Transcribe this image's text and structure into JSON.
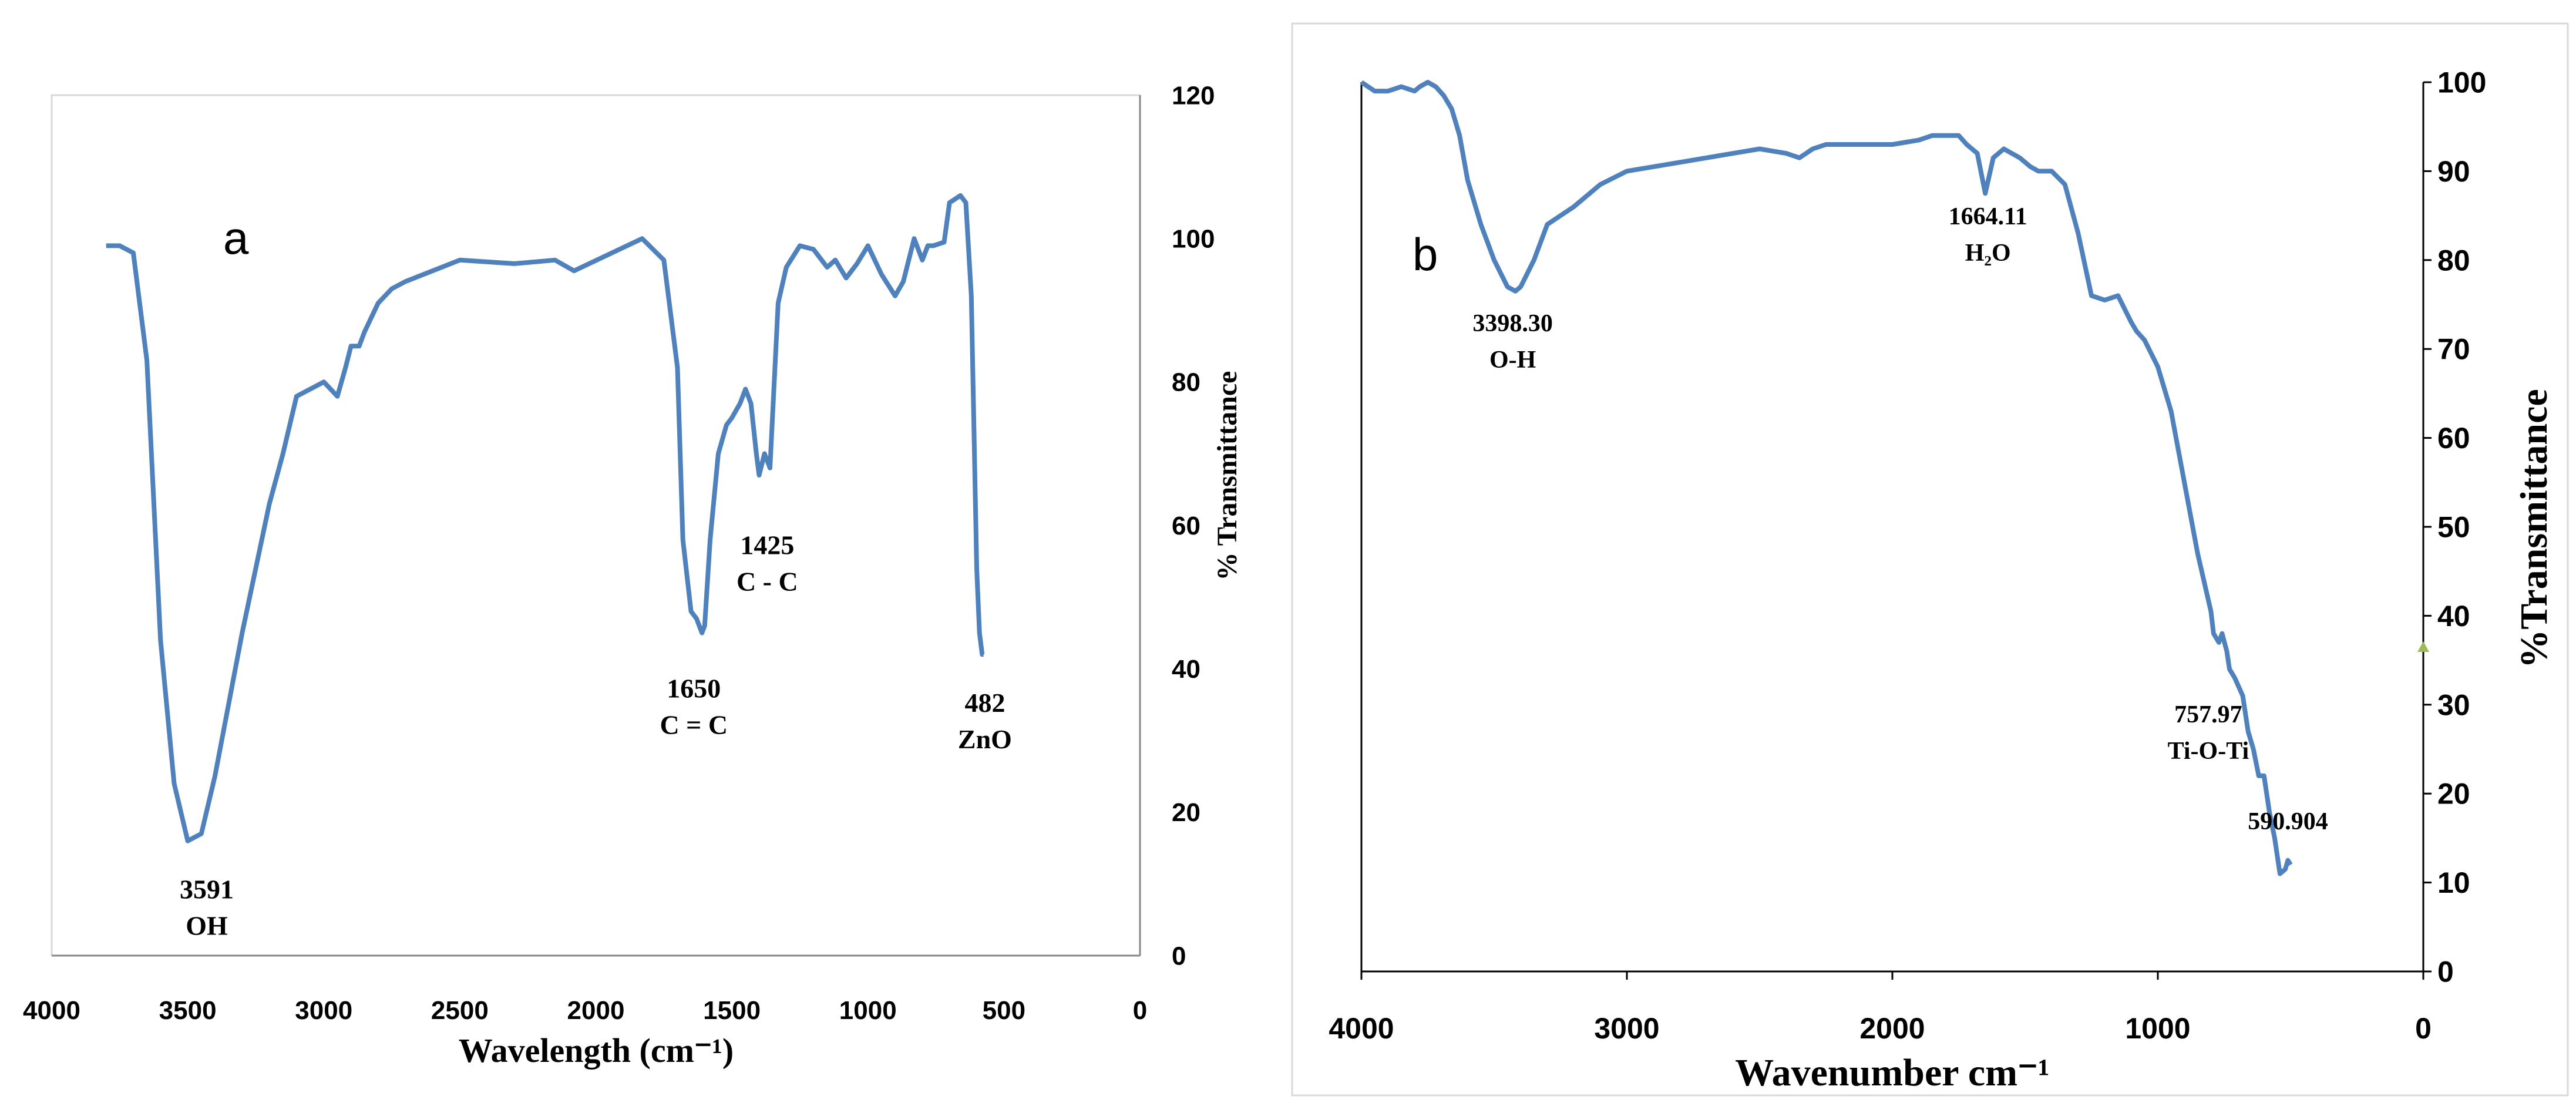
{
  "chart_data": [
    {
      "type": "line",
      "panel_label": "a",
      "xlabel": "Wavelength (cm⁻¹)",
      "ylabel": "% Transmittance",
      "xlim": [
        4000,
        0
      ],
      "ylim": [
        0,
        120
      ],
      "x_ticks": [
        "4000",
        "3500",
        "3000",
        "2500",
        "2000",
        "1500",
        "1000",
        "500",
        "0"
      ],
      "y_ticks": [
        "0",
        "20",
        "40",
        "60",
        "80",
        "100",
        "120"
      ],
      "grid": false,
      "legend": "none",
      "color": "#4f81bd",
      "series": [
        {
          "x": [
            3800,
            3750,
            3700,
            3650,
            3600,
            3550,
            3500,
            3450,
            3400,
            3350,
            3300,
            3200,
            3150,
            3100,
            3000,
            2950,
            2920,
            2900,
            2870,
            2850,
            2800,
            2750,
            2700,
            2500,
            2300,
            2150,
            2080,
            1830,
            1750,
            1700,
            1680,
            1650,
            1630,
            1610,
            1600,
            1580,
            1550,
            1520,
            1500,
            1470,
            1450,
            1430,
            1410,
            1400,
            1380,
            1360,
            1330,
            1300,
            1250,
            1200,
            1150,
            1120,
            1080,
            1040,
            1000,
            950,
            900,
            870,
            830,
            800,
            780,
            760,
            720,
            700,
            660,
            640,
            620,
            600,
            590,
            580,
            575
          ],
          "y": [
            99,
            99,
            98,
            83,
            44,
            24,
            16,
            17,
            25,
            35,
            45,
            63,
            70,
            78,
            80,
            78,
            82,
            85,
            85,
            87,
            91,
            93,
            94,
            97,
            96.5,
            97,
            95.5,
            100,
            97,
            82,
            58,
            48,
            47,
            45,
            46,
            58,
            70,
            74,
            75,
            77,
            79,
            77,
            70,
            67,
            70,
            68,
            91,
            96,
            99,
            98.5,
            96,
            97,
            94.5,
            96.5,
            99,
            95,
            92,
            94,
            100,
            97,
            99,
            99,
            99.5,
            105,
            106,
            105,
            92,
            54,
            45,
            42,
            42
          ]
        }
      ],
      "annotations": [
        {
          "line1": "3591",
          "line2": "OH",
          "x": 3430,
          "y": 8
        },
        {
          "line1": "1650",
          "line2": "C = C",
          "x": 1640,
          "y": 36
        },
        {
          "line1": "1425",
          "line2": "C - C",
          "x": 1370,
          "y": 56
        },
        {
          "line1": "482",
          "line2": "ZnO",
          "x": 570,
          "y": 34
        }
      ]
    },
    {
      "type": "line",
      "panel_label": "b",
      "xlabel": "Wavenumber cm⁻¹",
      "ylabel": "%Transmittance",
      "xlim": [
        4000,
        0
      ],
      "ylim": [
        0,
        100
      ],
      "x_ticks": [
        "4000",
        "3000",
        "2000",
        "1000",
        "0"
      ],
      "y_ticks": [
        "0",
        "10",
        "20",
        "30",
        "40",
        "50",
        "60",
        "70",
        "80",
        "90",
        "100"
      ],
      "grid": false,
      "legend": "none",
      "color": "#4f81bd",
      "series": [
        {
          "x": [
            4000,
            3950,
            3900,
            3850,
            3800,
            3780,
            3750,
            3720,
            3690,
            3660,
            3630,
            3600,
            3550,
            3500,
            3450,
            3420,
            3400,
            3350,
            3300,
            3200,
            3100,
            3000,
            2800,
            2600,
            2500,
            2400,
            2350,
            2300,
            2250,
            2150,
            2050,
            2000,
            1900,
            1850,
            1800,
            1750,
            1720,
            1680,
            1650,
            1620,
            1580,
            1550,
            1520,
            1480,
            1450,
            1400,
            1350,
            1300,
            1250,
            1200,
            1150,
            1100,
            1080,
            1050,
            1000,
            950,
            900,
            850,
            800,
            790,
            770,
            758,
            740,
            730,
            710,
            680,
            660,
            640,
            620,
            600,
            580,
            560,
            540,
            520,
            510,
            500
          ],
          "y": [
            100,
            99,
            99,
            99.5,
            99,
            99.5,
            100,
            99.5,
            98.5,
            97,
            94,
            89,
            84,
            80,
            77,
            76.5,
            77,
            80,
            84,
            86,
            88.5,
            90,
            91,
            92,
            92.5,
            92,
            91.5,
            92.5,
            93,
            93,
            93,
            93,
            93.5,
            94,
            94,
            94,
            93,
            92,
            87.5,
            91.5,
            92.5,
            92,
            91.5,
            90.5,
            90,
            90,
            88.5,
            83,
            76,
            75.5,
            76,
            73,
            72,
            71,
            68,
            63,
            55,
            47,
            40.5,
            38,
            37,
            38,
            36,
            34,
            33,
            31,
            27,
            25,
            22,
            22,
            18,
            15,
            11,
            11.5,
            12.5,
            12
          ]
        }
      ],
      "annotations": [
        {
          "line1": "3398.30",
          "line2": "O-H",
          "x": 3430,
          "y": 72
        },
        {
          "line1": "1664.11",
          "line2": "H₂O",
          "x": 1640,
          "y": 84
        },
        {
          "line1": "757.97",
          "line2": "Ti-O-Ti",
          "x": 810,
          "y": 28
        },
        {
          "line1": "590.904",
          "line2": "",
          "x": 510,
          "y": 16
        }
      ]
    }
  ]
}
